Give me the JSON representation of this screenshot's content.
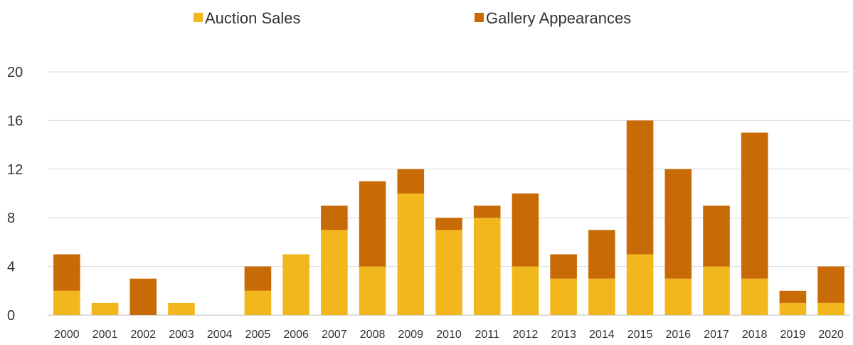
{
  "chart_data": {
    "type": "bar",
    "stacked": true,
    "title": "",
    "xlabel": "",
    "ylabel": "",
    "categories": [
      "2000",
      "2001",
      "2002",
      "2003",
      "2004",
      "2005",
      "2006",
      "2007",
      "2008",
      "2009",
      "2010",
      "2011",
      "2012",
      "2013",
      "2014",
      "2015",
      "2016",
      "2017",
      "2018",
      "2019",
      "2020"
    ],
    "series": [
      {
        "name": "Auction Sales",
        "color": "#F2B71C",
        "values": [
          2,
          1,
          0,
          1,
          0,
          2,
          5,
          7,
          4,
          10,
          7,
          8,
          4,
          3,
          3,
          5,
          3,
          4,
          3,
          1,
          1
        ]
      },
      {
        "name": "Gallery Appearances",
        "color": "#C86B06",
        "values": [
          3,
          0,
          3,
          0,
          0,
          2,
          0,
          2,
          7,
          2,
          1,
          1,
          6,
          2,
          4,
          11,
          9,
          5,
          12,
          1,
          3
        ]
      }
    ],
    "ylim": [
      0,
      20
    ],
    "yticks": [
      "0",
      "4",
      "8",
      "12",
      "16",
      "20"
    ],
    "grid": true,
    "legend_position": "top"
  }
}
